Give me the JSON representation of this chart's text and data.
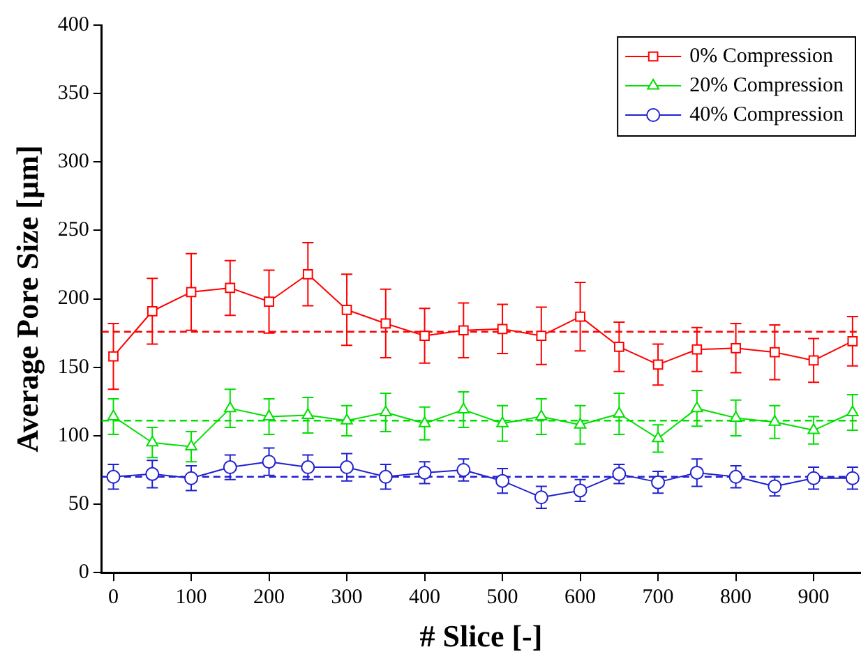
{
  "chart_data": {
    "type": "line",
    "xlabel": "# Slice [-]",
    "ylabel": "Average Pore Size [µm]",
    "x": [
      0,
      50,
      100,
      150,
      200,
      250,
      300,
      350,
      400,
      450,
      500,
      550,
      600,
      650,
      700,
      750,
      800,
      850,
      900,
      950
    ],
    "xlim": [
      -15,
      960
    ],
    "xticks": [
      0,
      100,
      200,
      300,
      400,
      500,
      600,
      700,
      800,
      900
    ],
    "ylim": [
      0,
      400
    ],
    "yticks": [
      0,
      50,
      100,
      150,
      200,
      250,
      300,
      350,
      400
    ],
    "grid": false,
    "legend": "top right",
    "line_style": "solid",
    "series": [
      {
        "name": "0% Compression",
        "color": "#ff0000",
        "marker": "square",
        "values": [
          158,
          191,
          205,
          208,
          198,
          218,
          192,
          182,
          173,
          177,
          178,
          173,
          187,
          165,
          152,
          163,
          164,
          161,
          155,
          169
        ],
        "errors": [
          24,
          24,
          28,
          20,
          23,
          23,
          26,
          25,
          20,
          20,
          18,
          21,
          25,
          18,
          15,
          16,
          18,
          20,
          16,
          18
        ]
      },
      {
        "name": "20% Compression",
        "color": "#00e000",
        "marker": "triangle",
        "values": [
          114,
          95,
          92,
          120,
          114,
          115,
          111,
          117,
          109,
          119,
          109,
          114,
          108,
          116,
          98,
          120,
          113,
          110,
          104,
          117
        ],
        "errors": [
          13,
          11,
          11,
          14,
          13,
          13,
          11,
          14,
          12,
          13,
          13,
          13,
          14,
          15,
          10,
          13,
          13,
          12,
          10,
          13
        ]
      },
      {
        "name": "40% Compression",
        "color": "#2020d0",
        "marker": "circle",
        "values": [
          70,
          72,
          69,
          77,
          81,
          77,
          77,
          70,
          73,
          75,
          67,
          55,
          60,
          72,
          66,
          73,
          70,
          63,
          69,
          69
        ],
        "errors": [
          9,
          10,
          9,
          9,
          10,
          9,
          10,
          9,
          8,
          8,
          9,
          8,
          8,
          7,
          8,
          10,
          8,
          7,
          8,
          8
        ]
      }
    ],
    "ref_lines": [
      {
        "axis": "y",
        "value": 176,
        "color": "#ff0000",
        "line_style": "dashed"
      },
      {
        "axis": "y",
        "value": 111,
        "color": "#00e000",
        "line_style": "dashed"
      },
      {
        "axis": "y",
        "value": 70,
        "color": "#2020d0",
        "line_style": "dashed"
      }
    ]
  }
}
